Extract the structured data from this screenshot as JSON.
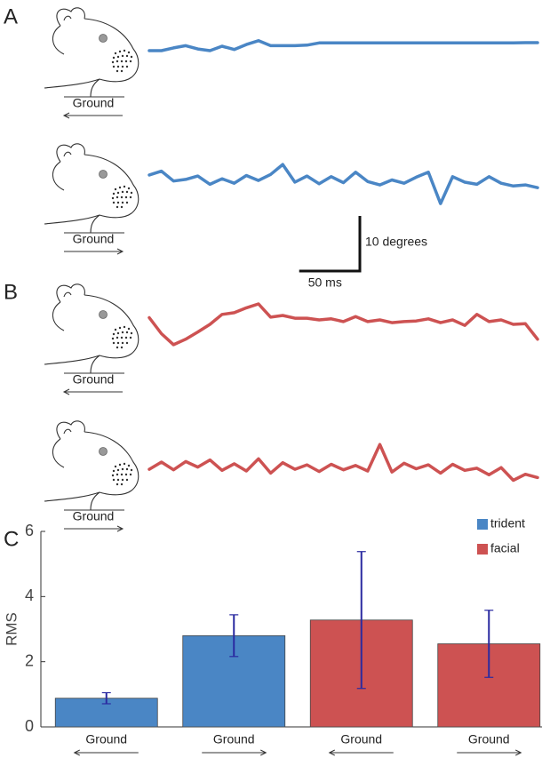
{
  "panels": [
    "A",
    "B",
    "C"
  ],
  "chart_data": [
    {
      "type": "line",
      "stimulus": {
        "label": "Ground",
        "arrow": "left"
      },
      "xlim": [
        0,
        320
      ],
      "ylim": [
        -5,
        5
      ],
      "x": [
        0,
        10,
        20,
        30,
        40,
        50,
        60,
        70,
        80,
        90,
        100,
        110,
        120,
        130,
        140,
        150,
        160,
        170,
        180,
        190,
        200,
        210,
        220,
        230,
        240,
        250,
        260,
        270,
        280,
        290,
        300,
        310,
        320
      ],
      "series": [
        {
          "color": "#4a86c5",
          "values": [
            -0.8,
            -0.8,
            -0.3,
            0.1,
            -0.5,
            -0.8,
            0.0,
            -0.6,
            0.3,
            1.0,
            0.1,
            0.1,
            0.1,
            0.2,
            0.6,
            0.6,
            0.6,
            0.6,
            0.6,
            0.6,
            0.6,
            0.6,
            0.6,
            0.6,
            0.6,
            0.6,
            0.6,
            0.6,
            0.6,
            0.6,
            0.6,
            0.65,
            0.65
          ]
        }
      ]
    },
    {
      "type": "line",
      "stimulus": {
        "label": "Ground",
        "arrow": "right"
      },
      "xlim": [
        0,
        320
      ],
      "ylim": [
        -5,
        5
      ],
      "x": [
        0,
        10,
        20,
        30,
        40,
        50,
        60,
        70,
        80,
        90,
        100,
        110,
        120,
        130,
        140,
        150,
        160,
        170,
        180,
        190,
        200,
        210,
        220,
        230,
        240,
        250,
        260,
        270,
        280,
        290,
        300,
        310,
        320
      ],
      "series": [
        {
          "color": "#4a86c5",
          "values": [
            0.5,
            1.2,
            -0.6,
            -0.3,
            0.3,
            -1.2,
            -0.2,
            -1.0,
            0.4,
            -0.5,
            0.6,
            2.4,
            -0.8,
            0.3,
            -1.1,
            0.2,
            -0.9,
            1.0,
            -0.7,
            -1.3,
            -0.4,
            -1.0,
            0.1,
            1.0,
            -4.7,
            0.2,
            -0.8,
            -1.2,
            0.2,
            -1.0,
            -1.5,
            -1.3,
            -1.8
          ]
        }
      ],
      "scale_bar": {
        "y": {
          "value": 10,
          "label": "10 degrees"
        },
        "x": {
          "value": 50,
          "label": "50 ms"
        }
      }
    },
    {
      "type": "line",
      "stimulus": {
        "label": "Ground",
        "arrow": "left"
      },
      "xlim": [
        0,
        320
      ],
      "ylim": [
        -5,
        5
      ],
      "x": [
        0,
        10,
        20,
        30,
        40,
        50,
        60,
        70,
        80,
        90,
        100,
        110,
        120,
        130,
        140,
        150,
        160,
        170,
        180,
        190,
        200,
        210,
        220,
        230,
        240,
        250,
        260,
        270,
        280,
        290,
        300,
        310,
        320
      ],
      "series": [
        {
          "color": "#cd5252",
          "values": [
            0.4,
            -2.5,
            -4.5,
            -3.5,
            -2.2,
            -0.8,
            1.0,
            1.3,
            2.2,
            2.9,
            0.5,
            0.8,
            0.3,
            0.3,
            0.0,
            0.2,
            -0.3,
            0.6,
            -0.3,
            0.0,
            -0.5,
            -0.3,
            -0.2,
            0.2,
            -0.5,
            0.0,
            -1.0,
            1.0,
            -0.3,
            0.0,
            -0.8,
            -0.7,
            -3.5
          ]
        }
      ]
    },
    {
      "type": "line",
      "stimulus": {
        "label": "Ground",
        "arrow": "right"
      },
      "xlim": [
        0,
        320
      ],
      "ylim": [
        -5,
        5
      ],
      "x": [
        0,
        10,
        20,
        30,
        40,
        50,
        60,
        70,
        80,
        90,
        100,
        110,
        120,
        130,
        140,
        150,
        160,
        170,
        180,
        190,
        200,
        210,
        220,
        230,
        240,
        250,
        260,
        270,
        280,
        290,
        300,
        310,
        320
      ],
      "series": [
        {
          "color": "#cd5252",
          "values": [
            -0.5,
            0.8,
            -0.6,
            0.9,
            -0.1,
            1.2,
            -0.7,
            0.5,
            -0.8,
            1.4,
            -1.2,
            0.7,
            -0.5,
            0.3,
            -0.9,
            0.4,
            -0.6,
            0.2,
            -0.8,
            4.0,
            -1.0,
            0.6,
            -0.4,
            0.3,
            -1.2,
            0.4,
            -0.7,
            -0.3,
            -1.5,
            -0.2,
            -2.5,
            -1.4,
            -2.0
          ]
        }
      ]
    },
    {
      "type": "bar",
      "y_label": "RMS",
      "categories": [
        "Ground",
        "Ground",
        "Ground",
        "Ground"
      ],
      "arrows": [
        "left",
        "right",
        "left",
        "right"
      ],
      "series": [
        {
          "name": "trident",
          "color": "#4a86c5",
          "values": [
            0.88,
            2.8,
            null,
            null
          ],
          "errors": [
            0.17,
            0.64,
            null,
            null
          ]
        },
        {
          "name": "facial",
          "color": "#cd5252",
          "values": [
            null,
            null,
            3.28,
            2.55
          ],
          "errors": [
            null,
            null,
            2.1,
            1.03
          ]
        }
      ],
      "error_color": "#2a2aa0",
      "ylim": [
        0,
        6
      ],
      "yticks": [
        0,
        2,
        4,
        6
      ],
      "grid": false,
      "legend": "top-right"
    }
  ]
}
